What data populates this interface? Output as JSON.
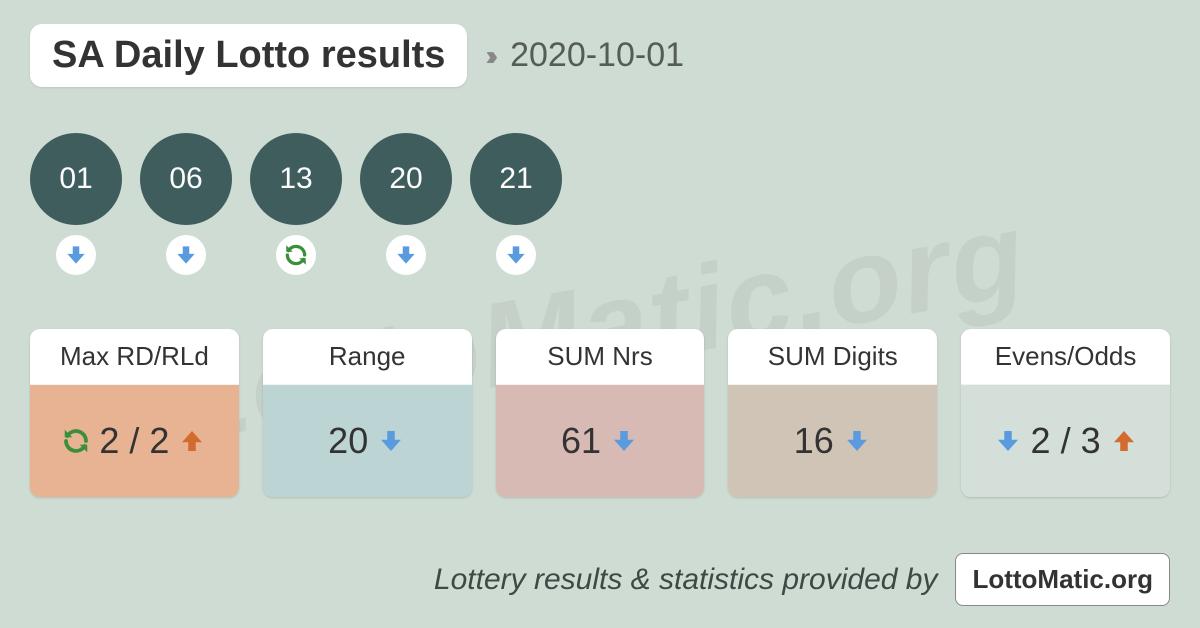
{
  "header": {
    "title": "SA Daily Lotto results",
    "date": "2020-10-01"
  },
  "watermark": "LottoMatic.org",
  "colors": {
    "page_bg": "#cfdcd3",
    "ball_bg": "#3e5d5c",
    "ball_text": "#fdfdfd",
    "arrow_down": "#5a9be0",
    "arrow_up": "#d36a2e",
    "repeat": "#3a8f3a",
    "card_bg_0": "#e8b393",
    "card_bg_1": "#bdd4d4",
    "card_bg_2": "#d8bab4",
    "card_bg_3": "#d0c4b7",
    "card_bg_4": "#d5dfd9"
  },
  "balls": [
    {
      "number": "01",
      "trend": "down"
    },
    {
      "number": "06",
      "trend": "down"
    },
    {
      "number": "13",
      "trend": "repeat"
    },
    {
      "number": "20",
      "trend": "down"
    },
    {
      "number": "21",
      "trend": "down"
    }
  ],
  "stats": [
    {
      "label": "Max RD/RLd",
      "bg_key": "card_bg_0",
      "items": [
        {
          "type": "icon",
          "icon": "repeat"
        },
        {
          "type": "text",
          "value": "2 / 2"
        },
        {
          "type": "icon",
          "icon": "up"
        }
      ]
    },
    {
      "label": "Range",
      "bg_key": "card_bg_1",
      "items": [
        {
          "type": "text",
          "value": "20"
        },
        {
          "type": "icon",
          "icon": "down"
        }
      ]
    },
    {
      "label": "SUM Nrs",
      "bg_key": "card_bg_2",
      "items": [
        {
          "type": "text",
          "value": "61"
        },
        {
          "type": "icon",
          "icon": "down"
        }
      ]
    },
    {
      "label": "SUM Digits",
      "bg_key": "card_bg_3",
      "items": [
        {
          "type": "text",
          "value": "16"
        },
        {
          "type": "icon",
          "icon": "down"
        }
      ]
    },
    {
      "label": "Evens/Odds",
      "bg_key": "card_bg_4",
      "items": [
        {
          "type": "icon",
          "icon": "down"
        },
        {
          "type": "text",
          "value": "2 / 3"
        },
        {
          "type": "icon",
          "icon": "up"
        }
      ]
    }
  ],
  "footer": {
    "text": "Lottery results & statistics provided by",
    "badge": "LottoMatic.org"
  }
}
